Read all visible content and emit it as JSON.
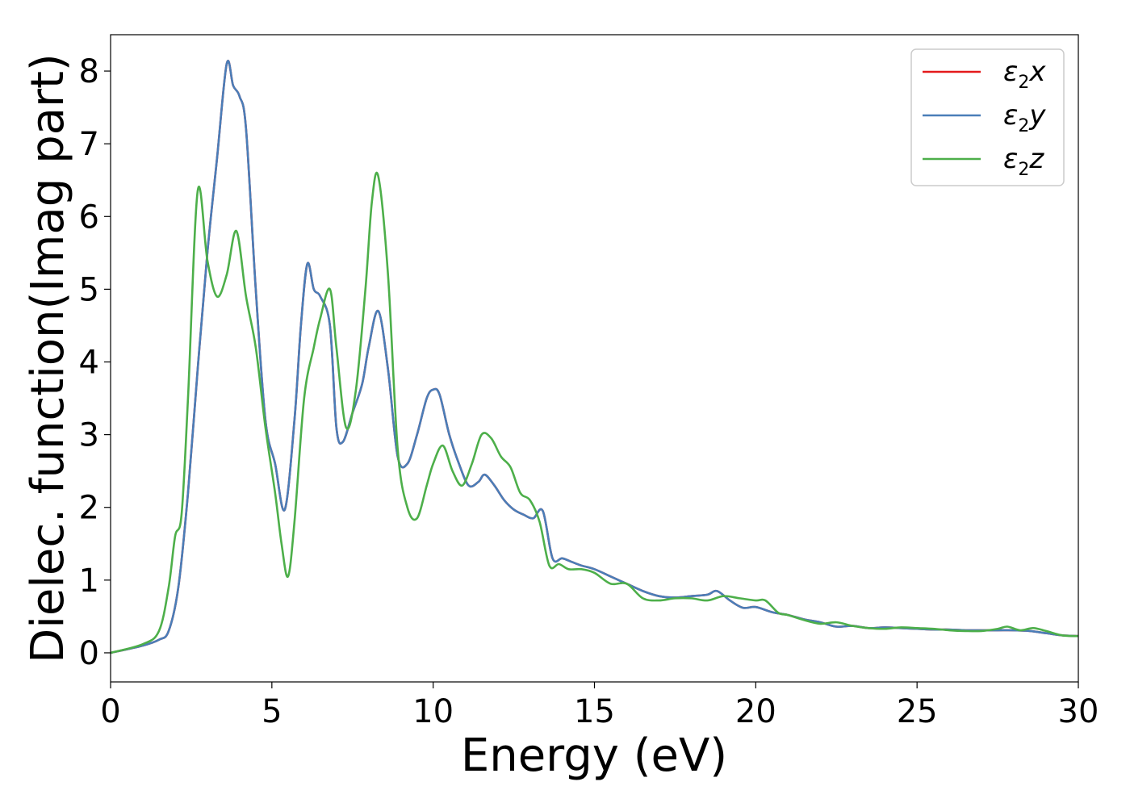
{
  "chart_data": {
    "type": "line",
    "xlabel": "Energy (eV)",
    "ylabel": "Dielec. function(Imag part)",
    "xlim": [
      0,
      30
    ],
    "ylim": [
      -0.4,
      8.5
    ],
    "xticks": [
      0,
      5,
      10,
      15,
      20,
      25,
      30
    ],
    "yticks": [
      0,
      1,
      2,
      3,
      4,
      5,
      6,
      7,
      8
    ],
    "grid": false,
    "legend_position": "top-right",
    "series": [
      {
        "name": "ε2x",
        "label_main": "ε",
        "label_sub": "2",
        "label_end": "x",
        "color": "#e41a1c",
        "x": [
          0,
          1,
          1.5,
          1.8,
          2.1,
          2.4,
          2.7,
          3.0,
          3.3,
          3.6,
          3.8,
          4.0,
          4.2,
          4.5,
          4.8,
          5.1,
          5.4,
          5.7,
          5.9,
          6.1,
          6.3,
          6.5,
          6.8,
          7.0,
          7.2,
          7.5,
          7.8,
          8.0,
          8.3,
          8.6,
          8.9,
          9.2,
          9.5,
          9.8,
          10.0,
          10.2,
          10.5,
          10.8,
          11.1,
          11.4,
          11.6,
          11.9,
          12.2,
          12.5,
          12.8,
          13.1,
          13.4,
          13.7,
          14.0,
          14.3,
          14.6,
          15.0,
          15.5,
          16.0,
          16.5,
          17.0,
          17.5,
          18.0,
          18.5,
          18.8,
          19.2,
          19.6,
          20.0,
          20.5,
          21.0,
          21.5,
          22.0,
          22.5,
          23.0,
          23.5,
          24.0,
          24.5,
          25.0,
          25.5,
          26.0,
          26.5,
          27.0,
          27.5,
          28.0,
          28.5,
          29.0,
          29.5,
          30.0
        ],
        "y": [
          0.0,
          0.1,
          0.18,
          0.3,
          0.9,
          2.2,
          3.9,
          5.5,
          6.8,
          8.1,
          7.8,
          7.65,
          7.2,
          5.0,
          3.2,
          2.6,
          1.97,
          3.2,
          4.5,
          5.35,
          5.0,
          4.9,
          4.5,
          3.1,
          2.9,
          3.3,
          3.7,
          4.2,
          4.7,
          3.9,
          2.7,
          2.6,
          3.0,
          3.5,
          3.62,
          3.55,
          3.0,
          2.6,
          2.3,
          2.35,
          2.45,
          2.3,
          2.1,
          1.97,
          1.9,
          1.85,
          1.95,
          1.3,
          1.3,
          1.25,
          1.2,
          1.15,
          1.05,
          0.95,
          0.85,
          0.78,
          0.76,
          0.78,
          0.8,
          0.85,
          0.72,
          0.62,
          0.63,
          0.56,
          0.52,
          0.46,
          0.42,
          0.36,
          0.37,
          0.34,
          0.35,
          0.34,
          0.33,
          0.32,
          0.32,
          0.31,
          0.31,
          0.31,
          0.31,
          0.3,
          0.27,
          0.24,
          0.23
        ]
      },
      {
        "name": "ε2y",
        "label_main": "ε",
        "label_sub": "2",
        "label_end": "y",
        "color": "#4a7eb8",
        "x": [
          0,
          1,
          1.5,
          1.8,
          2.1,
          2.4,
          2.7,
          3.0,
          3.3,
          3.6,
          3.8,
          4.0,
          4.2,
          4.5,
          4.8,
          5.1,
          5.4,
          5.7,
          5.9,
          6.1,
          6.3,
          6.5,
          6.8,
          7.0,
          7.2,
          7.5,
          7.8,
          8.0,
          8.3,
          8.6,
          8.9,
          9.2,
          9.5,
          9.8,
          10.0,
          10.2,
          10.5,
          10.8,
          11.1,
          11.4,
          11.6,
          11.9,
          12.2,
          12.5,
          12.8,
          13.1,
          13.4,
          13.7,
          14.0,
          14.3,
          14.6,
          15.0,
          15.5,
          16.0,
          16.5,
          17.0,
          17.5,
          18.0,
          18.5,
          18.8,
          19.2,
          19.6,
          20.0,
          20.5,
          21.0,
          21.5,
          22.0,
          22.5,
          23.0,
          23.5,
          24.0,
          24.5,
          25.0,
          25.5,
          26.0,
          26.5,
          27.0,
          27.5,
          28.0,
          28.5,
          29.0,
          29.5,
          30.0
        ],
        "y": [
          0.0,
          0.1,
          0.18,
          0.3,
          0.9,
          2.2,
          3.9,
          5.5,
          6.8,
          8.1,
          7.8,
          7.65,
          7.2,
          5.0,
          3.2,
          2.6,
          1.97,
          3.2,
          4.5,
          5.35,
          5.0,
          4.9,
          4.5,
          3.1,
          2.9,
          3.3,
          3.7,
          4.2,
          4.7,
          3.9,
          2.7,
          2.6,
          3.0,
          3.5,
          3.62,
          3.55,
          3.0,
          2.6,
          2.3,
          2.35,
          2.45,
          2.3,
          2.1,
          1.97,
          1.9,
          1.85,
          1.95,
          1.3,
          1.3,
          1.25,
          1.2,
          1.15,
          1.05,
          0.95,
          0.85,
          0.78,
          0.76,
          0.78,
          0.8,
          0.85,
          0.72,
          0.62,
          0.63,
          0.56,
          0.52,
          0.46,
          0.42,
          0.36,
          0.37,
          0.34,
          0.35,
          0.34,
          0.33,
          0.32,
          0.32,
          0.31,
          0.31,
          0.31,
          0.31,
          0.3,
          0.27,
          0.24,
          0.23
        ]
      },
      {
        "name": "ε2z",
        "label_main": "ε",
        "label_sub": "2",
        "label_end": "z",
        "color": "#4daf4a",
        "x": [
          0,
          1,
          1.5,
          1.8,
          2.0,
          2.2,
          2.4,
          2.7,
          3.0,
          3.3,
          3.6,
          3.9,
          4.2,
          4.5,
          4.8,
          5.1,
          5.3,
          5.5,
          5.7,
          6.0,
          6.3,
          6.5,
          6.8,
          7.0,
          7.3,
          7.6,
          7.9,
          8.1,
          8.3,
          8.6,
          8.9,
          9.2,
          9.5,
          9.8,
          10.0,
          10.3,
          10.6,
          10.9,
          11.2,
          11.5,
          11.8,
          12.1,
          12.4,
          12.7,
          13.0,
          13.3,
          13.6,
          13.9,
          14.2,
          14.6,
          15.0,
          15.5,
          16.0,
          16.5,
          17.0,
          17.5,
          18.0,
          18.5,
          19.0,
          19.5,
          20.0,
          20.3,
          20.7,
          21.0,
          21.5,
          22.0,
          22.5,
          23.0,
          23.5,
          24.0,
          24.5,
          25.0,
          25.5,
          26.0,
          26.5,
          27.0,
          27.5,
          27.8,
          28.2,
          28.6,
          29.0,
          29.5,
          30.0
        ],
        "y": [
          0.0,
          0.12,
          0.3,
          0.9,
          1.6,
          1.9,
          3.5,
          6.35,
          5.4,
          4.9,
          5.2,
          5.8,
          4.9,
          4.2,
          3.1,
          2.2,
          1.5,
          1.05,
          1.8,
          3.5,
          4.2,
          4.6,
          5.0,
          4.2,
          3.1,
          3.6,
          5.0,
          6.2,
          6.55,
          5.2,
          2.8,
          2.0,
          1.85,
          2.3,
          2.6,
          2.85,
          2.5,
          2.3,
          2.6,
          3.0,
          2.95,
          2.7,
          2.55,
          2.2,
          2.1,
          1.8,
          1.2,
          1.22,
          1.15,
          1.15,
          1.1,
          0.95,
          0.95,
          0.75,
          0.72,
          0.75,
          0.75,
          0.72,
          0.78,
          0.75,
          0.72,
          0.72,
          0.55,
          0.52,
          0.45,
          0.4,
          0.42,
          0.37,
          0.34,
          0.33,
          0.35,
          0.34,
          0.33,
          0.31,
          0.3,
          0.3,
          0.33,
          0.36,
          0.31,
          0.34,
          0.3,
          0.24,
          0.23
        ]
      }
    ]
  }
}
